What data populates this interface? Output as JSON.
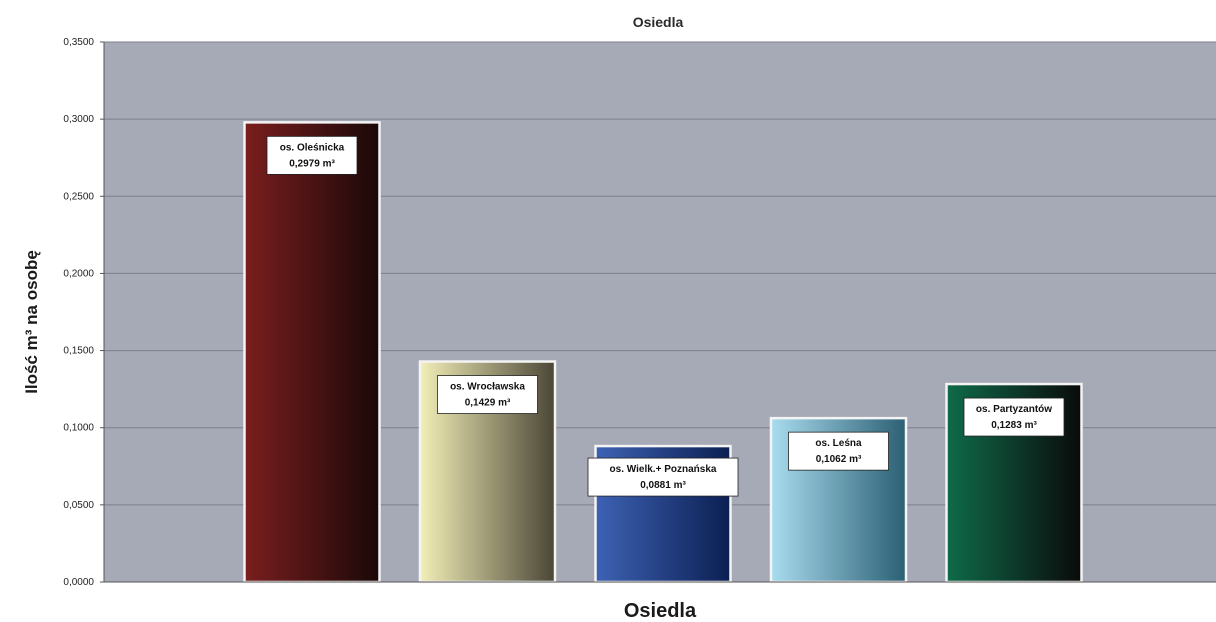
{
  "chart_data": {
    "type": "bar",
    "subtitle": "Osiedla",
    "xlabel": "Osiedla",
    "ylabel": "Ilość m³ na osobę",
    "ylim": [
      0,
      0.35
    ],
    "yticks": [
      "0,0000",
      "0,0500",
      "0,1000",
      "0,1500",
      "0,2000",
      "0,2500",
      "0,3000",
      "0,3500"
    ],
    "grid": true,
    "categories": [
      "os. Oleśnicka",
      "os. Wrocławska",
      "os. Wielk.+ Poznańska",
      "os. Leśna",
      "os. Partyzantów"
    ],
    "values": [
      0.2979,
      0.1429,
      0.0881,
      0.1062,
      0.1283
    ],
    "value_labels": [
      "0,2979 m³",
      "0,1429 m³",
      "0,0881 m³",
      "0,1062 m³",
      "0,1283 m³"
    ],
    "bar_colors": [
      [
        "#7a1e1e",
        "#1a0808"
      ],
      [
        "#f3efb8",
        "#4a4636"
      ],
      [
        "#3e62b4",
        "#0b1f52"
      ],
      [
        "#a9dcef",
        "#2b5f73"
      ],
      [
        "#0f6b4a",
        "#0a0a0a"
      ]
    ],
    "plot_background": "#a6a9b6"
  }
}
